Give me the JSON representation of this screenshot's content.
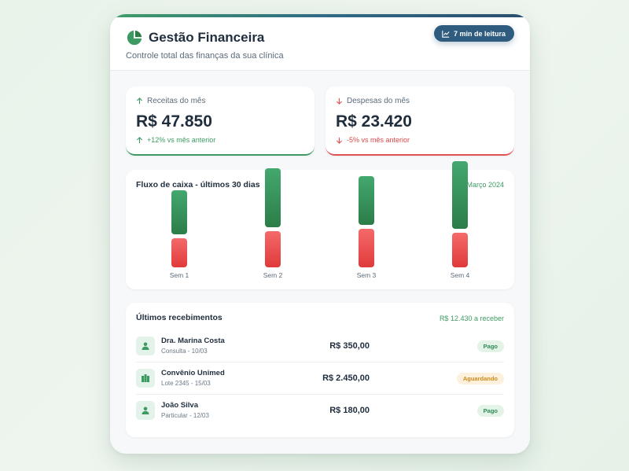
{
  "header": {
    "title": "Gestão Financeira",
    "subtitle": "Controle total das finanças da sua clínica",
    "read_badge": "7 min de leitura"
  },
  "kpis": {
    "income": {
      "label": "Receitas do mês",
      "value": "R$ 47.850",
      "delta": "+12% vs mês anterior",
      "color": "#3d9a63"
    },
    "expense": {
      "label": "Despesas do mês",
      "value": "R$ 23.420",
      "delta": "-5% vs mês anterior",
      "color": "#e05252"
    }
  },
  "cashflow": {
    "title": "Fluxo de caixa - últimos 30 dias",
    "period": "Março 2024"
  },
  "chart_data": {
    "type": "bar",
    "categories": [
      "Sem 1",
      "Sem 2",
      "Sem 3",
      "Sem 4"
    ],
    "series": [
      {
        "values": [
          60,
          80,
          66,
          93
        ],
        "color": "#3d9a63"
      },
      {
        "values": [
          40,
          50,
          53,
          47
        ],
        "color": "#e05252"
      }
    ]
  },
  "receipts": {
    "title": "Últimos recebimentos",
    "total": "R$ 12.430 a receber",
    "items": [
      {
        "name": "Dra. Marina Costa",
        "sub": "Consulta - 10/03",
        "amount": "R$ 350,00",
        "status": "Pago",
        "icon": "user-icon"
      },
      {
        "name": "Convênio Unimed",
        "sub": "Lote 2345 - 15/03",
        "amount": "R$ 2.450,00",
        "status": "Aguardando",
        "icon": "building-icon"
      },
      {
        "name": "João Silva",
        "sub": "Particular - 12/03",
        "amount": "R$ 180,00",
        "status": "Pago",
        "icon": "user-icon"
      }
    ]
  }
}
